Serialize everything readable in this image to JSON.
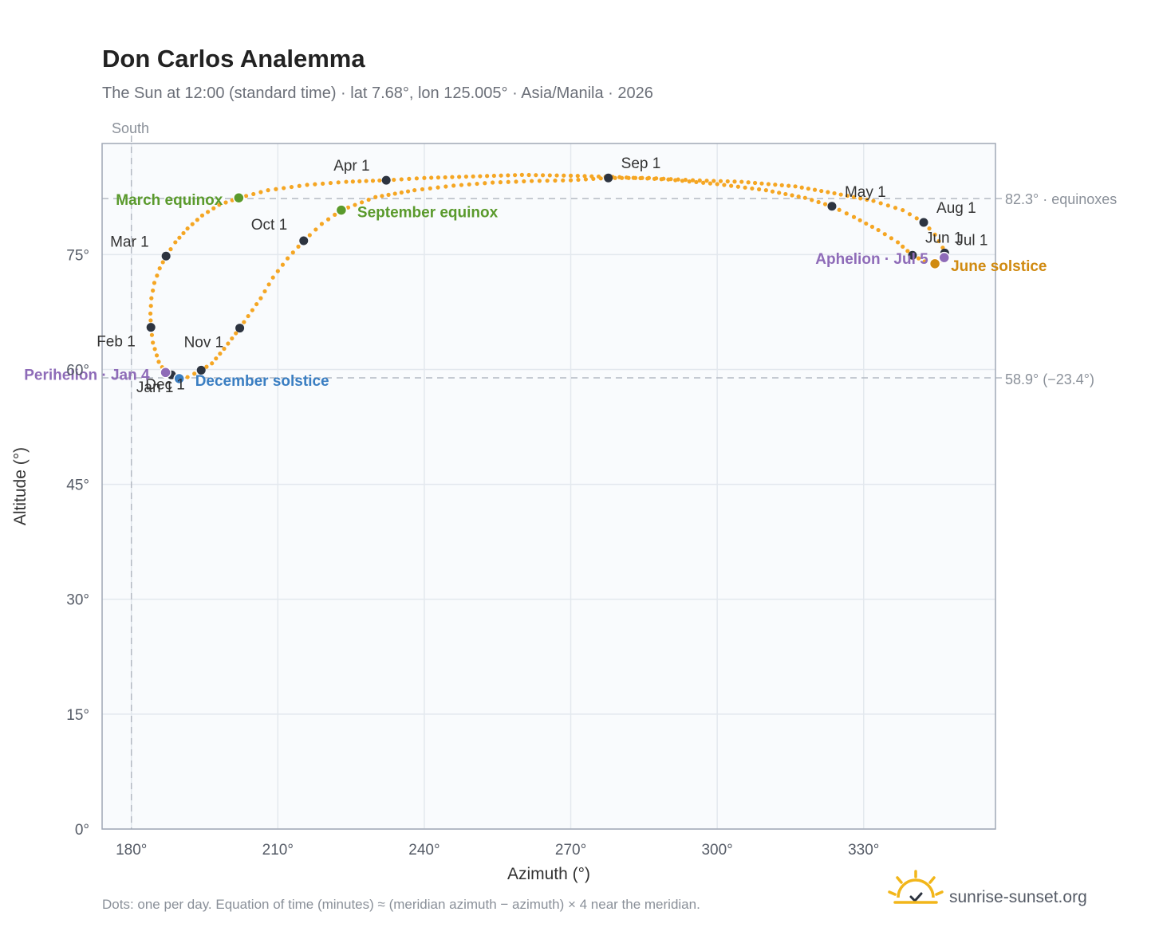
{
  "title": "Don Carlos Analemma",
  "subtitle": "The Sun at 12:00 (standard time) · lat 7.68°, lon 125.005° · Asia/Manila · 2026",
  "south_label": "South",
  "ref_lines": {
    "equinox_label": "82.3° · equinoxes",
    "solstice_label": "58.9° (−23.4°)"
  },
  "footnote": "Dots: one per day. Equation of time (minutes) ≈ (meridian azimuth − azimuth) × 4 near the meridian.",
  "brand": "sunrise-sunset.org",
  "colors": {
    "curve": "#f5a623",
    "month_marker": "#2d3440",
    "equinox": "#5a9a2c",
    "december_solstice": "#3a7ec2",
    "june_solstice": "#d08a10",
    "apsis": "#8e6bb8",
    "plot_bg": "#f9fbfd",
    "grid": "#e3e8ee",
    "frame": "#a0a8b5"
  },
  "chart_data": {
    "type": "scatter",
    "xlabel": "Azimuth (°)",
    "ylabel": "Altitude (°)",
    "xlim": [
      174,
      357
    ],
    "ylim": [
      0,
      89.5
    ],
    "xticks": [
      180,
      210,
      240,
      270,
      300,
      330
    ],
    "xtick_labels": [
      "180°",
      "210°",
      "240°",
      "270°",
      "300°",
      "330°"
    ],
    "yticks": [
      0,
      15,
      30,
      45,
      60,
      75
    ],
    "ytick_labels": [
      "0°",
      "15°",
      "30°",
      "45°",
      "60°",
      "75°"
    ],
    "grid": true,
    "reference_lines": [
      {
        "axis": "y",
        "value": 82.3
      },
      {
        "axis": "y",
        "value": 58.9
      },
      {
        "axis": "x",
        "value": 180
      }
    ],
    "analemma_path": [
      [
        187.0,
        59.6
      ],
      [
        185.6,
        61.0
      ],
      [
        184.4,
        63.5
      ],
      [
        184.0,
        65.5
      ],
      [
        183.9,
        67.3
      ],
      [
        184.1,
        69.3
      ],
      [
        184.7,
        71.3
      ],
      [
        185.8,
        73.2
      ],
      [
        187.1,
        74.8
      ],
      [
        189.0,
        76.6
      ],
      [
        191.5,
        78.4
      ],
      [
        194.5,
        80.1
      ],
      [
        198.0,
        81.5
      ],
      [
        202.0,
        82.4
      ],
      [
        208.0,
        83.4
      ],
      [
        216.0,
        84.1
      ],
      [
        224.0,
        84.5
      ],
      [
        232.2,
        84.7
      ],
      [
        240.0,
        85.0
      ],
      [
        250.0,
        85.2
      ],
      [
        260.0,
        85.4
      ],
      [
        270.0,
        85.3
      ],
      [
        280.0,
        85.1
      ],
      [
        290.0,
        84.8
      ],
      [
        300.0,
        84.2
      ],
      [
        310.0,
        83.4
      ],
      [
        318.0,
        82.4
      ],
      [
        323.5,
        81.3
      ],
      [
        328.0,
        79.9
      ],
      [
        333.0,
        78.2
      ],
      [
        337.0,
        76.6
      ],
      [
        340.0,
        74.9
      ],
      [
        342.5,
        74.1
      ],
      [
        344.6,
        73.8
      ],
      [
        346.0,
        74.2
      ],
      [
        346.7,
        74.6
      ],
      [
        346.2,
        75.9
      ],
      [
        344.6,
        77.6
      ],
      [
        342.3,
        79.2
      ],
      [
        338.0,
        80.8
      ],
      [
        332.0,
        82.0
      ],
      [
        324.0,
        83.0
      ],
      [
        316.0,
        83.9
      ],
      [
        305.0,
        84.5
      ],
      [
        295.0,
        84.7
      ],
      [
        286.0,
        85.0
      ],
      [
        277.7,
        85.0
      ],
      [
        270.0,
        84.7
      ],
      [
        262.0,
        84.6
      ],
      [
        254.0,
        84.4
      ],
      [
        246.0,
        84.0
      ],
      [
        238.0,
        83.4
      ],
      [
        230.0,
        82.5
      ],
      [
        223.0,
        80.8
      ],
      [
        219.0,
        79.0
      ],
      [
        215.3,
        76.8
      ],
      [
        212.0,
        74.5
      ],
      [
        209.0,
        72.0
      ],
      [
        206.5,
        69.3
      ],
      [
        202.2,
        65.4
      ],
      [
        199.0,
        62.7
      ],
      [
        196.5,
        60.8
      ],
      [
        194.3,
        59.9
      ],
      [
        191.5,
        59.0
      ],
      [
        189.8,
        58.8
      ],
      [
        188.5,
        59.0
      ],
      [
        187.5,
        59.3
      ],
      [
        187.0,
        59.6
      ]
    ],
    "months": [
      {
        "label": "Jan 1",
        "az": 188.2,
        "alt": 59.3
      },
      {
        "label": "Feb 1",
        "az": 184.0,
        "alt": 65.5
      },
      {
        "label": "Mar 1",
        "az": 187.1,
        "alt": 74.8
      },
      {
        "label": "Apr 1",
        "az": 232.2,
        "alt": 84.7
      },
      {
        "label": "May 1",
        "az": 323.5,
        "alt": 81.3
      },
      {
        "label": "Jun 1",
        "az": 340.0,
        "alt": 74.9
      },
      {
        "label": "Jul 1",
        "az": 346.6,
        "alt": 75.2
      },
      {
        "label": "Aug 1",
        "az": 342.3,
        "alt": 79.2
      },
      {
        "label": "Sep 1",
        "az": 277.7,
        "alt": 85.0
      },
      {
        "label": "Oct 1",
        "az": 215.3,
        "alt": 76.8
      },
      {
        "label": "Nov 1",
        "az": 202.2,
        "alt": 65.4
      },
      {
        "label": "Dec 1",
        "az": 194.3,
        "alt": 59.9
      }
    ],
    "events": [
      {
        "label": "March equinox",
        "az": 202.0,
        "alt": 82.4,
        "color_key": "equinox"
      },
      {
        "label": "September equinox",
        "az": 223.0,
        "alt": 80.8,
        "color_key": "equinox"
      },
      {
        "label": "December solstice",
        "az": 189.8,
        "alt": 58.8,
        "color_key": "december_solstice"
      },
      {
        "label": "June solstice",
        "az": 344.6,
        "alt": 73.8,
        "color_key": "june_solstice"
      },
      {
        "label": "Perihelion · Jan 4",
        "az": 187.0,
        "alt": 59.6,
        "color_key": "apsis"
      },
      {
        "label": "Aphelion · Jul 5",
        "az": 346.5,
        "alt": 74.6,
        "color_key": "apsis"
      }
    ]
  }
}
